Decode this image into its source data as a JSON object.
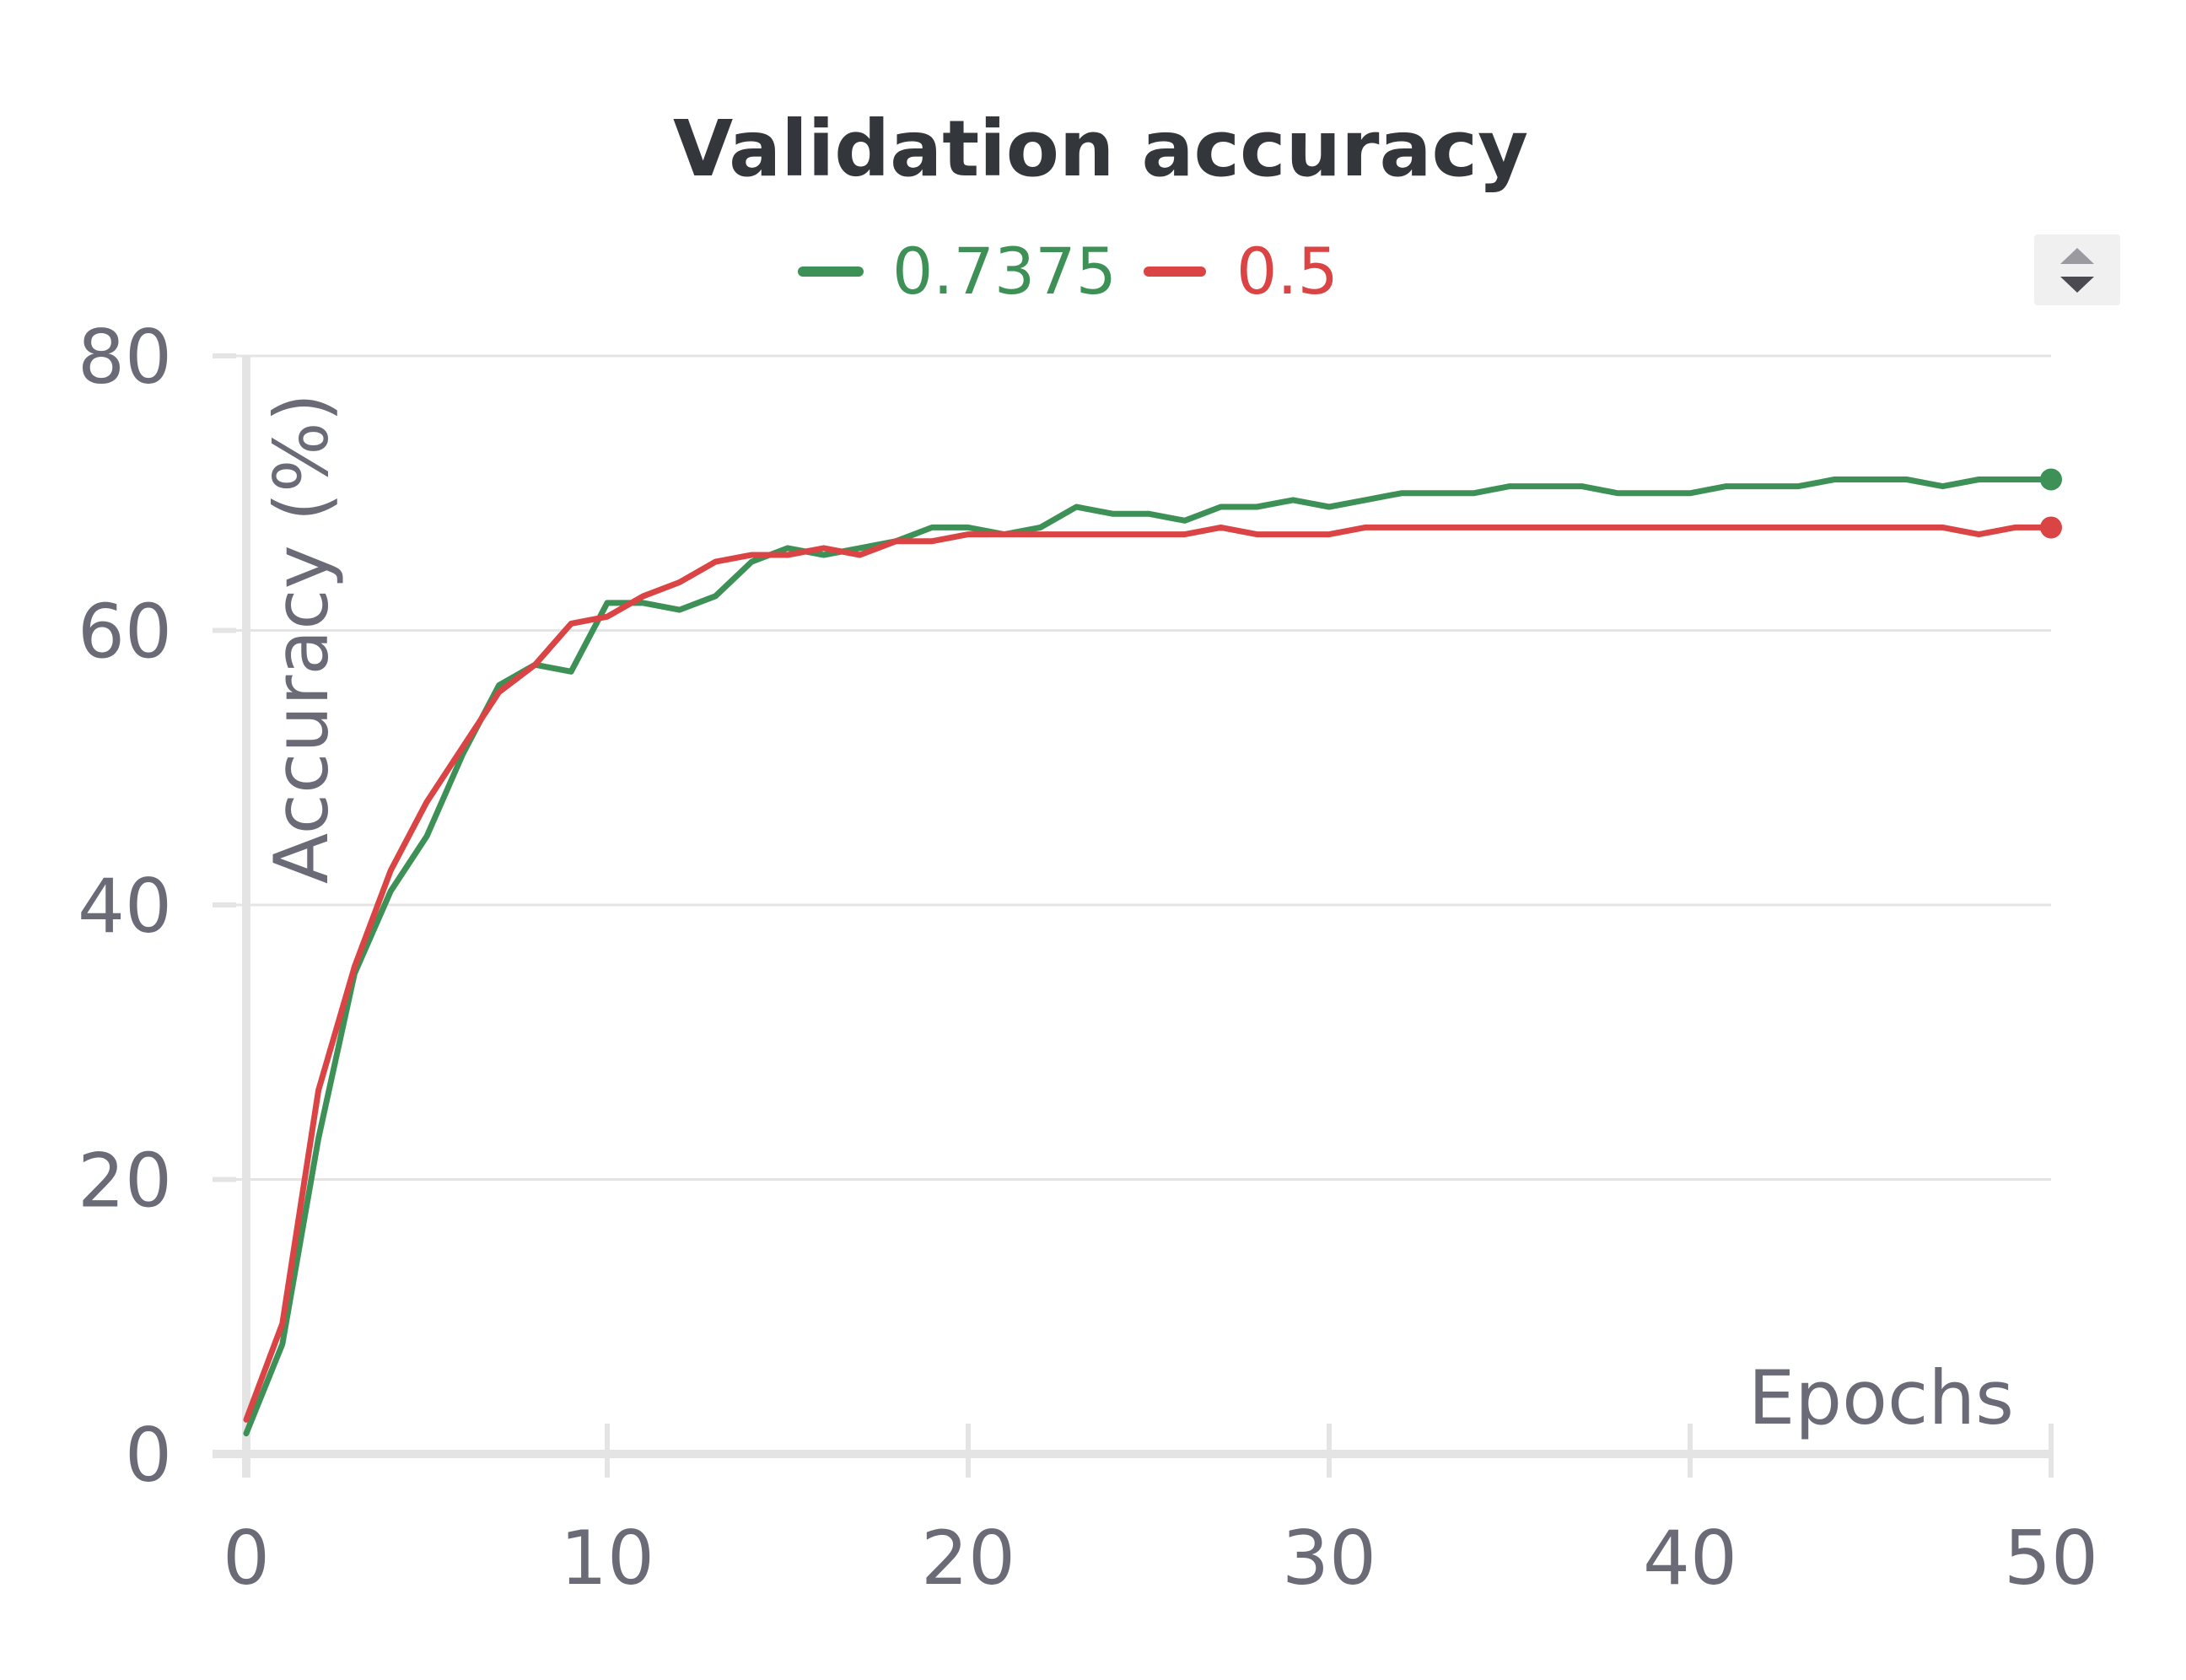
{
  "chart_data": {
    "type": "line",
    "title": "Validation accuracy",
    "xlabel": "Epochs",
    "ylabel": "Accuracy (%)",
    "xlim": [
      0,
      50
    ],
    "ylim": [
      0,
      80
    ],
    "x_ticks": [
      0,
      10,
      20,
      30,
      40,
      50
    ],
    "y_ticks": [
      0,
      20,
      40,
      60,
      80
    ],
    "grid": true,
    "legend_position": "top-center",
    "x": [
      0,
      1,
      2,
      3,
      4,
      5,
      6,
      7,
      8,
      9,
      10,
      11,
      12,
      13,
      14,
      15,
      16,
      17,
      18,
      19,
      20,
      21,
      22,
      23,
      24,
      25,
      26,
      27,
      28,
      29,
      30,
      31,
      32,
      33,
      34,
      35,
      36,
      37,
      38,
      39,
      40,
      41,
      42,
      43,
      44,
      45,
      46,
      47,
      48,
      49,
      50
    ],
    "series": [
      {
        "name": "0.7375",
        "color": "#3e9156",
        "values": [
          1.5,
          8,
          23,
          35,
          41,
          45,
          51,
          56,
          57.5,
          57,
          62,
          62,
          61.5,
          62.5,
          65,
          66,
          65.5,
          66,
          66.5,
          67.5,
          67.5,
          67,
          67.5,
          69,
          68.5,
          68.5,
          68,
          69,
          69,
          69.5,
          69,
          69.5,
          70,
          70,
          70,
          70.5,
          70.5,
          70.5,
          70,
          70,
          70,
          70.5,
          70.5,
          70.5,
          71,
          71,
          71,
          70.5,
          71,
          71,
          71
        ]
      },
      {
        "name": "0.5",
        "color": "#da4444",
        "values": [
          2.5,
          9.5,
          26.5,
          35.5,
          42.5,
          47.5,
          51.5,
          55.5,
          57.5,
          60.5,
          61,
          62.5,
          63.5,
          65,
          65.5,
          65.5,
          66,
          65.5,
          66.5,
          66.5,
          67,
          67,
          67,
          67,
          67,
          67,
          67,
          67.5,
          67,
          67,
          67,
          67.5,
          67.5,
          67.5,
          67.5,
          67.5,
          67.5,
          67.5,
          67.5,
          67.5,
          67.5,
          67.5,
          67.5,
          67.5,
          67.5,
          67.5,
          67.5,
          67.5,
          67,
          67.5,
          67.5
        ]
      }
    ]
  }
}
